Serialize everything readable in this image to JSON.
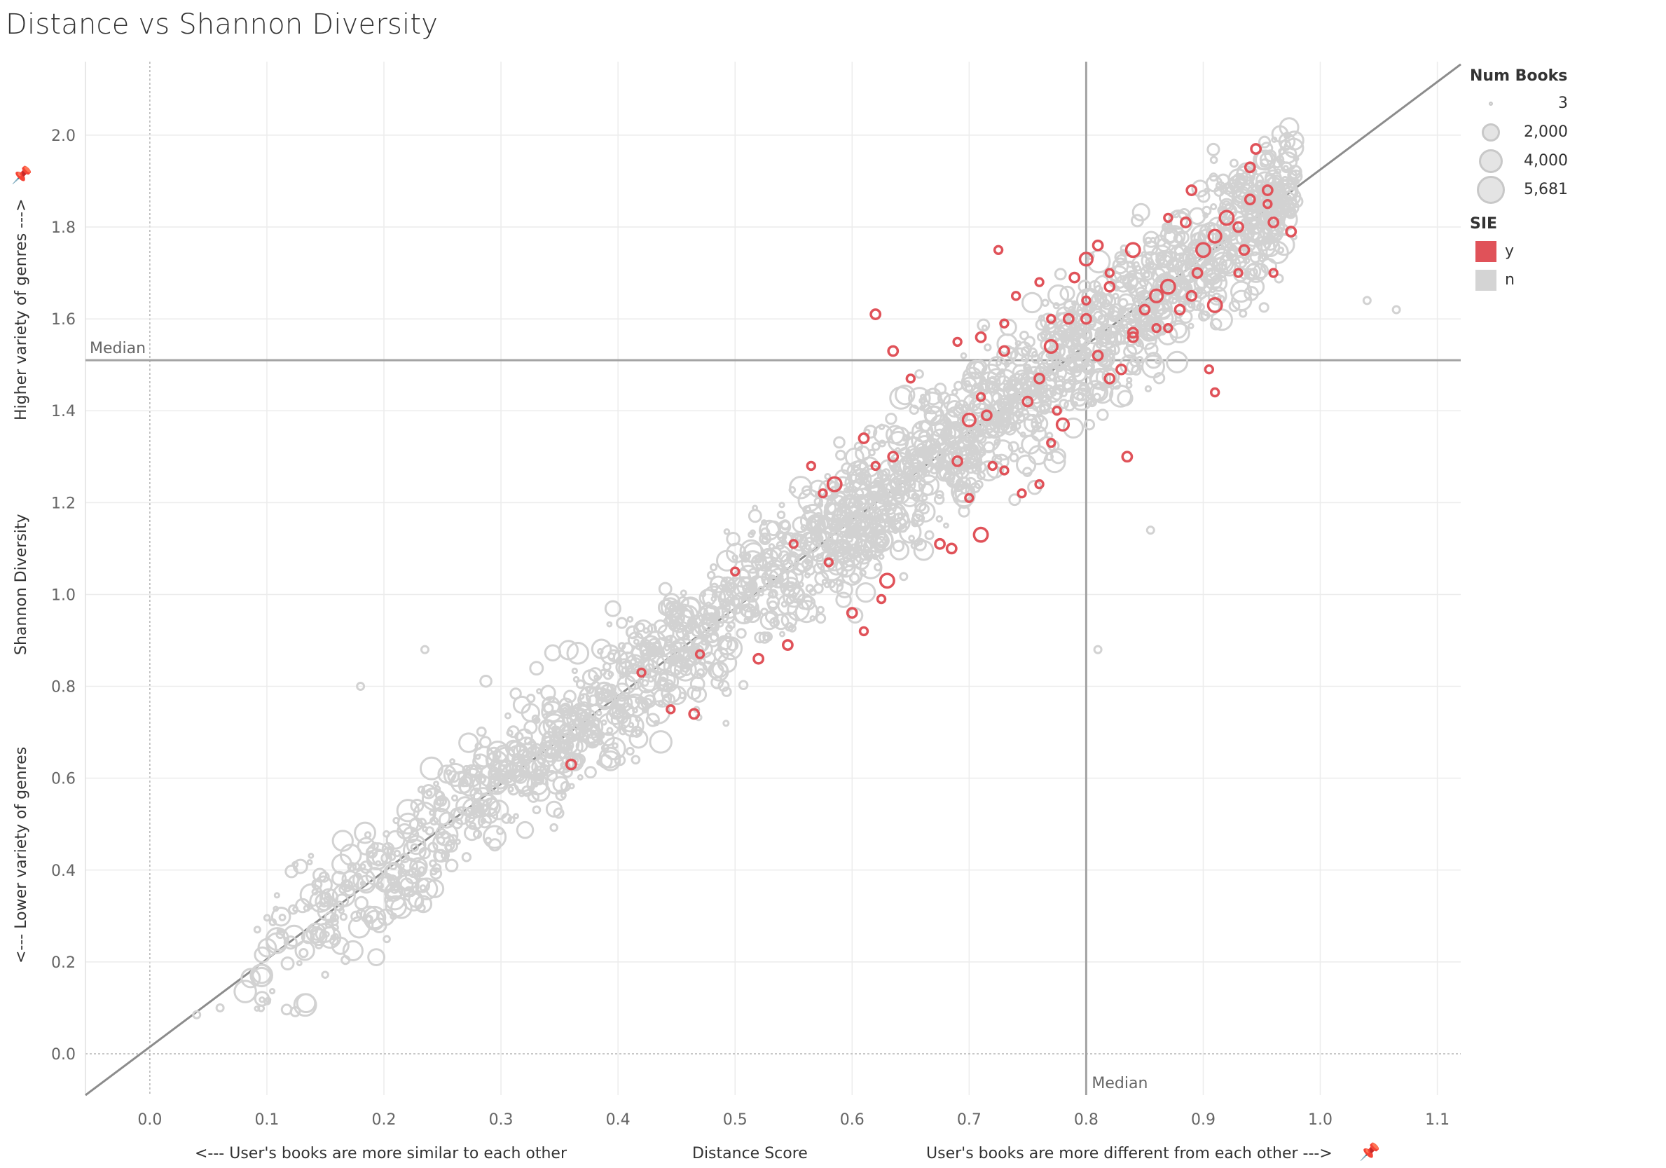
{
  "chart_data": {
    "type": "scatter",
    "title": "Distance vs Shannon Diversity",
    "xlabel": "Distance Score",
    "xlabel_left": "<--- User's books are more similar to each other",
    "xlabel_right": "User's books are more different from each other --->",
    "ylabel": "Shannon Diversity",
    "ylabel_top": "Higher variety of genres --->",
    "ylabel_bottom": "<--- Lower variety of genres",
    "xlim": [
      -0.055,
      1.12
    ],
    "ylim": [
      -0.09,
      2.16
    ],
    "x_ticks": [
      "0.0",
      "0.1",
      "0.2",
      "0.3",
      "0.4",
      "0.5",
      "0.6",
      "0.7",
      "0.8",
      "0.9",
      "1.0",
      "1.1"
    ],
    "y_ticks": [
      "0.0",
      "0.2",
      "0.4",
      "0.6",
      "0.8",
      "1.0",
      "1.2",
      "1.4",
      "1.6",
      "1.8",
      "2.0"
    ],
    "median_x": 0.8,
    "median_y": 1.51,
    "median_label": "Median",
    "trend_line": {
      "slope": 1.91,
      "intercept": 0.015
    },
    "grid": true,
    "legend_position": "top-right",
    "size_legend": {
      "title": "Num Books",
      "entries": [
        {
          "label": "3",
          "value": 3
        },
        {
          "label": "2,000",
          "value": 2000
        },
        {
          "label": "4,000",
          "value": 4000
        },
        {
          "label": "5,681",
          "value": 5681
        }
      ]
    },
    "color_legend": {
      "title": "SIE",
      "entries": [
        {
          "label": "y",
          "color": "#e05259"
        },
        {
          "label": "n",
          "color": "#d4d4d4"
        }
      ]
    },
    "series": [
      {
        "name": "y",
        "color": "#e05259",
        "points": [
          [
            0.62,
            1.61,
            300
          ],
          [
            0.635,
            1.53,
            300
          ],
          [
            0.65,
            1.47,
            150
          ],
          [
            0.585,
            1.24,
            900
          ],
          [
            0.575,
            1.22,
            150
          ],
          [
            0.565,
            1.28,
            150
          ],
          [
            0.63,
            1.03,
            900
          ],
          [
            0.62,
            1.28,
            150
          ],
          [
            0.61,
            1.34,
            300
          ],
          [
            0.635,
            1.3,
            300
          ],
          [
            0.55,
            1.11,
            150
          ],
          [
            0.58,
            1.07,
            150
          ],
          [
            0.6,
            0.96,
            300
          ],
          [
            0.61,
            0.92,
            150
          ],
          [
            0.625,
            0.99,
            150
          ],
          [
            0.52,
            0.86,
            300
          ],
          [
            0.545,
            0.89,
            300
          ],
          [
            0.47,
            0.87,
            150
          ],
          [
            0.465,
            0.74,
            300
          ],
          [
            0.445,
            0.75,
            150
          ],
          [
            0.42,
            0.83,
            150
          ],
          [
            0.36,
            0.63,
            300
          ],
          [
            0.5,
            1.05,
            150
          ],
          [
            0.71,
            1.13,
            900
          ],
          [
            0.675,
            1.11,
            300
          ],
          [
            0.685,
            1.1,
            300
          ],
          [
            0.7,
            1.38,
            700
          ],
          [
            0.715,
            1.39,
            300
          ],
          [
            0.69,
            1.29,
            300
          ],
          [
            0.72,
            1.28,
            150
          ],
          [
            0.7,
            1.21,
            150
          ],
          [
            0.745,
            1.22,
            150
          ],
          [
            0.76,
            1.24,
            150
          ],
          [
            0.73,
            1.27,
            150
          ],
          [
            0.77,
            1.33,
            150
          ],
          [
            0.775,
            1.4,
            150
          ],
          [
            0.78,
            1.37,
            600
          ],
          [
            0.75,
            1.42,
            300
          ],
          [
            0.76,
            1.47,
            300
          ],
          [
            0.73,
            1.53,
            300
          ],
          [
            0.71,
            1.56,
            300
          ],
          [
            0.69,
            1.55,
            150
          ],
          [
            0.73,
            1.59,
            150
          ],
          [
            0.77,
            1.54,
            700
          ],
          [
            0.785,
            1.6,
            300
          ],
          [
            0.8,
            1.6,
            300
          ],
          [
            0.81,
            1.52,
            300
          ],
          [
            0.82,
            1.47,
            300
          ],
          [
            0.83,
            1.49,
            300
          ],
          [
            0.84,
            1.56,
            300
          ],
          [
            0.835,
            1.3,
            300
          ],
          [
            0.82,
            1.67,
            300
          ],
          [
            0.8,
            1.73,
            700
          ],
          [
            0.81,
            1.76,
            300
          ],
          [
            0.84,
            1.75,
            900
          ],
          [
            0.86,
            1.65,
            700
          ],
          [
            0.87,
            1.67,
            900
          ],
          [
            0.88,
            1.62,
            300
          ],
          [
            0.89,
            1.65,
            300
          ],
          [
            0.895,
            1.7,
            300
          ],
          [
            0.9,
            1.75,
            900
          ],
          [
            0.91,
            1.78,
            700
          ],
          [
            0.92,
            1.82,
            900
          ],
          [
            0.93,
            1.8,
            300
          ],
          [
            0.94,
            1.86,
            300
          ],
          [
            0.945,
            1.97,
            300
          ],
          [
            0.955,
            1.85,
            150
          ],
          [
            0.96,
            1.81,
            300
          ],
          [
            0.975,
            1.79,
            300
          ],
          [
            0.91,
            1.63,
            900
          ],
          [
            0.93,
            1.7,
            150
          ],
          [
            0.905,
            1.49,
            150
          ],
          [
            0.91,
            1.44,
            150
          ],
          [
            0.87,
            1.82,
            150
          ],
          [
            0.885,
            1.81,
            300
          ],
          [
            0.89,
            1.88,
            300
          ],
          [
            0.935,
            1.75,
            300
          ],
          [
            0.94,
            1.93,
            300
          ],
          [
            0.955,
            1.88,
            300
          ],
          [
            0.86,
            1.58,
            150
          ],
          [
            0.85,
            1.62,
            300
          ],
          [
            0.8,
            1.64,
            150
          ],
          [
            0.79,
            1.69,
            300
          ],
          [
            0.82,
            1.7,
            150
          ],
          [
            0.77,
            1.6,
            150
          ],
          [
            0.74,
            1.65,
            150
          ],
          [
            0.725,
            1.75,
            150
          ],
          [
            0.96,
            1.7,
            150
          ],
          [
            0.84,
            1.57,
            300
          ],
          [
            0.87,
            1.58,
            150
          ],
          [
            0.76,
            1.68,
            150
          ],
          [
            0.71,
            1.43,
            150
          ]
        ]
      }
    ]
  }
}
